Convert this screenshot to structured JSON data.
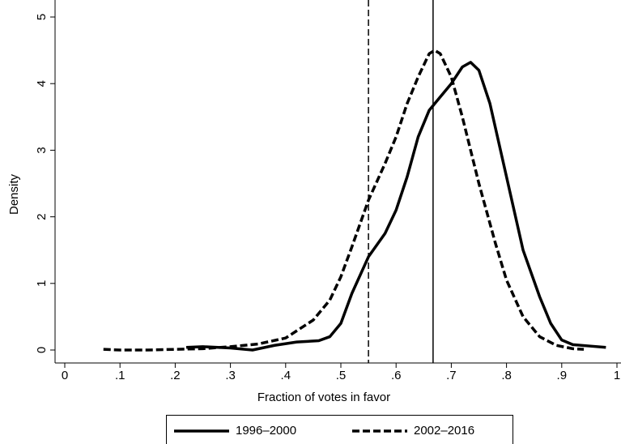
{
  "chart_data": {
    "type": "line",
    "xlabel": "Fraction of votes in favor",
    "ylabel": "Density",
    "xlim": [
      0,
      1
    ],
    "ylim": [
      0,
      5
    ],
    "xticks": [
      0,
      {
        "value": 0.1,
        "label": ".1"
      },
      {
        "value": 0.2,
        "label": ".2"
      },
      {
        "value": 0.3,
        "label": ".3"
      },
      {
        "value": 0.4,
        "label": ".4"
      },
      {
        "value": 0.5,
        "label": ".5"
      },
      {
        "value": 0.6,
        "label": ".6"
      },
      {
        "value": 0.7,
        "label": ".7"
      },
      {
        "value": 0.8,
        "label": ".8"
      },
      {
        "value": 0.9,
        "label": ".9"
      },
      1
    ],
    "yticks": [
      0,
      1,
      2,
      3,
      4,
      5
    ],
    "reference_lines": [
      {
        "value": 0.55,
        "style": "dashed"
      },
      {
        "value": 0.667,
        "style": "solid"
      }
    ],
    "legend": "bottom",
    "series": [
      {
        "name": "1996–2000",
        "color": "#000000",
        "style": "solid",
        "x": [
          0.22,
          0.25,
          0.3,
          0.34,
          0.38,
          0.42,
          0.46,
          0.48,
          0.5,
          0.52,
          0.55,
          0.58,
          0.6,
          0.62,
          0.64,
          0.66,
          0.68,
          0.7,
          0.72,
          0.735,
          0.75,
          0.77,
          0.8,
          0.83,
          0.86,
          0.88,
          0.9,
          0.92,
          0.95,
          0.98
        ],
        "values": [
          0.04,
          0.05,
          0.03,
          0.0,
          0.07,
          0.12,
          0.14,
          0.2,
          0.4,
          0.85,
          1.4,
          1.75,
          2.1,
          2.6,
          3.2,
          3.6,
          3.8,
          4.0,
          4.25,
          4.32,
          4.2,
          3.7,
          2.6,
          1.5,
          0.8,
          0.4,
          0.15,
          0.08,
          0.06,
          0.04
        ]
      },
      {
        "name": "2002–2016",
        "color": "#000000",
        "style": "dashed",
        "x": [
          0.07,
          0.1,
          0.15,
          0.2,
          0.25,
          0.3,
          0.35,
          0.4,
          0.45,
          0.48,
          0.5,
          0.52,
          0.55,
          0.58,
          0.6,
          0.62,
          0.64,
          0.66,
          0.67,
          0.68,
          0.7,
          0.72,
          0.75,
          0.78,
          0.8,
          0.83,
          0.86,
          0.89,
          0.92,
          0.94
        ],
        "values": [
          0.01,
          0.0,
          0.0,
          0.01,
          0.02,
          0.05,
          0.09,
          0.18,
          0.45,
          0.75,
          1.1,
          1.55,
          2.25,
          2.8,
          3.2,
          3.7,
          4.1,
          4.45,
          4.5,
          4.45,
          4.1,
          3.5,
          2.5,
          1.6,
          1.05,
          0.5,
          0.2,
          0.07,
          0.02,
          0.01
        ]
      }
    ]
  }
}
